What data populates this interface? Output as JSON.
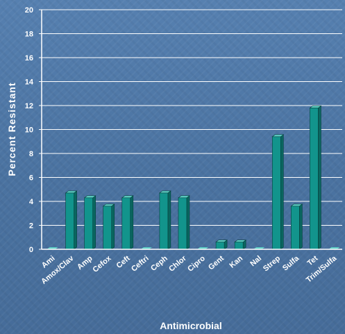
{
  "chart_data": {
    "type": "bar",
    "xlabel": "Antimicrobial",
    "ylabel": "Percent Resistant",
    "ylim": [
      0,
      20
    ],
    "yticks": [
      0,
      2,
      4,
      6,
      8,
      10,
      12,
      14,
      16,
      18,
      20
    ],
    "grid": true,
    "categories": [
      "Ami",
      "Amox/Clav",
      "Amp",
      "Cefox",
      "Ceft",
      "Ceftri",
      "Ceph",
      "Chlor",
      "Cipro",
      "Gent",
      "Kan",
      "Nal",
      "Strep",
      "Sulfa",
      "Tet",
      "Trim/Sulfa"
    ],
    "values": [
      0,
      4.7,
      4.3,
      3.6,
      4.3,
      0,
      4.7,
      4.3,
      0,
      0.6,
      0.6,
      0,
      9.4,
      3.6,
      11.8,
      0
    ],
    "colors": {
      "bar_front": "#12948c",
      "bar_top": "#5fd0c6",
      "bar_side": "#0a6660",
      "axis": "#ffffff",
      "grid": "#ffffff"
    }
  }
}
